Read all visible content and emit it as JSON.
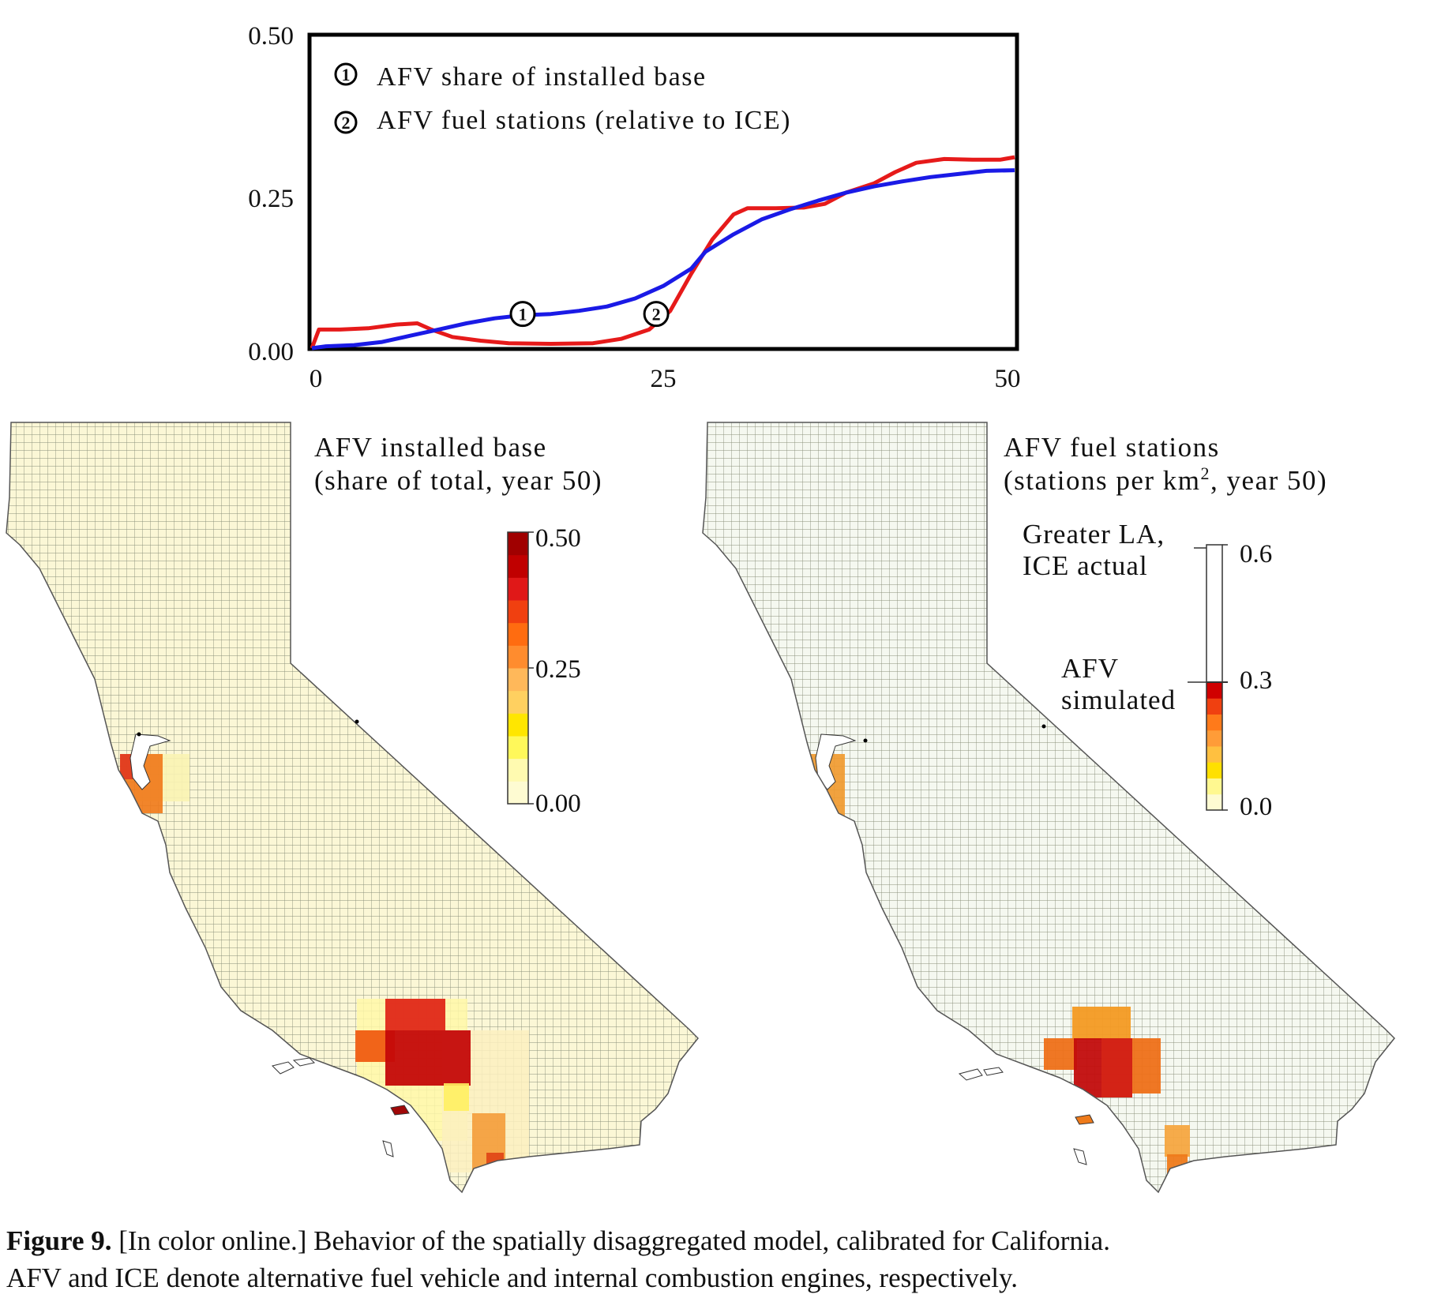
{
  "chart_data": {
    "type": "line",
    "x_ticks": [
      "0",
      "25",
      "50"
    ],
    "y_ticks": [
      "0.00",
      "0.25",
      "0.50"
    ],
    "xlim": [
      0,
      50
    ],
    "ylim": [
      0,
      0.5
    ],
    "legend_position": "top-left",
    "grid": false,
    "series": [
      {
        "name": "AFV share of installed base",
        "marker": "①",
        "color": "#1a1ae6",
        "points": [
          [
            0,
            0
          ],
          [
            1,
            0.003
          ],
          [
            3,
            0.005
          ],
          [
            5,
            0.01
          ],
          [
            7,
            0.02
          ],
          [
            9,
            0.03
          ],
          [
            11,
            0.04
          ],
          [
            13,
            0.048
          ],
          [
            15,
            0.053
          ],
          [
            17,
            0.055
          ],
          [
            19,
            0.06
          ],
          [
            21,
            0.067
          ],
          [
            23,
            0.08
          ],
          [
            25,
            0.1
          ],
          [
            27,
            0.128
          ],
          [
            28,
            0.155
          ],
          [
            30,
            0.183
          ],
          [
            32,
            0.207
          ],
          [
            34,
            0.223
          ],
          [
            36,
            0.237
          ],
          [
            38,
            0.25
          ],
          [
            40,
            0.26
          ],
          [
            42,
            0.268
          ],
          [
            44,
            0.275
          ],
          [
            46,
            0.28
          ],
          [
            48,
            0.285
          ],
          [
            50,
            0.286
          ]
        ],
        "marker_at": [
          15,
          0.055
        ]
      },
      {
        "name": "AFV fuel stations (relative to ICE)",
        "marker": "②",
        "color": "#e61a1a",
        "points": [
          [
            0,
            0
          ],
          [
            0.5,
            0.03
          ],
          [
            2,
            0.03
          ],
          [
            4,
            0.032
          ],
          [
            6,
            0.038
          ],
          [
            7.5,
            0.04
          ],
          [
            8.5,
            0.03
          ],
          [
            10,
            0.018
          ],
          [
            12,
            0.012
          ],
          [
            14,
            0.008
          ],
          [
            17,
            0.007
          ],
          [
            20,
            0.008
          ],
          [
            22,
            0.015
          ],
          [
            24,
            0.03
          ],
          [
            25.5,
            0.06
          ],
          [
            27,
            0.12
          ],
          [
            28.5,
            0.175
          ],
          [
            30,
            0.215
          ],
          [
            31,
            0.225
          ],
          [
            33,
            0.225
          ],
          [
            35,
            0.226
          ],
          [
            36.5,
            0.232
          ],
          [
            38,
            0.25
          ],
          [
            40,
            0.265
          ],
          [
            41.5,
            0.283
          ],
          [
            43,
            0.298
          ],
          [
            45,
            0.304
          ],
          [
            47,
            0.303
          ],
          [
            49,
            0.303
          ],
          [
            50,
            0.307
          ]
        ],
        "marker_at": [
          24.5,
          0.055
        ]
      }
    ]
  },
  "maps": {
    "left": {
      "title_line1": "AFV installed base",
      "title_line2": "(share of total, year 50)",
      "scale_labels": [
        "0.50",
        "0.25",
        "0.00"
      ],
      "scale_colors": [
        "#fefbd2",
        "#fffab0",
        "#fff85a",
        "#ffe600",
        "#ffd060",
        "#ffb85a",
        "#ff8c2e",
        "#ff6c10",
        "#f04010",
        "#e01818",
        "#c00000",
        "#a00000"
      ]
    },
    "right": {
      "title_line1": "AFV fuel stations",
      "title_line2_pre": "(stations per km",
      "title_line2_sup": "2",
      "title_line2_post": ", year 50)",
      "scale_labels": [
        "0.6",
        "0.3",
        "0.0"
      ],
      "upper_label_line1": "Greater LA,",
      "upper_label_line2": "ICE actual",
      "lower_label_line1": "AFV",
      "lower_label_line2": "simulated",
      "scale_colors": [
        "#fefbd2",
        "#fff890",
        "#ffe000",
        "#ffc040",
        "#ff9c38",
        "#ff7a1a",
        "#f04010",
        "#d00000"
      ]
    }
  },
  "caption": {
    "label": "Figure 9.",
    "line1": " [In color online.] Behavior of the spatially disaggregated model, calibrated for California.",
    "line2": "AFV and ICE denote alternative fuel vehicle and internal combustion engines, respectively."
  }
}
